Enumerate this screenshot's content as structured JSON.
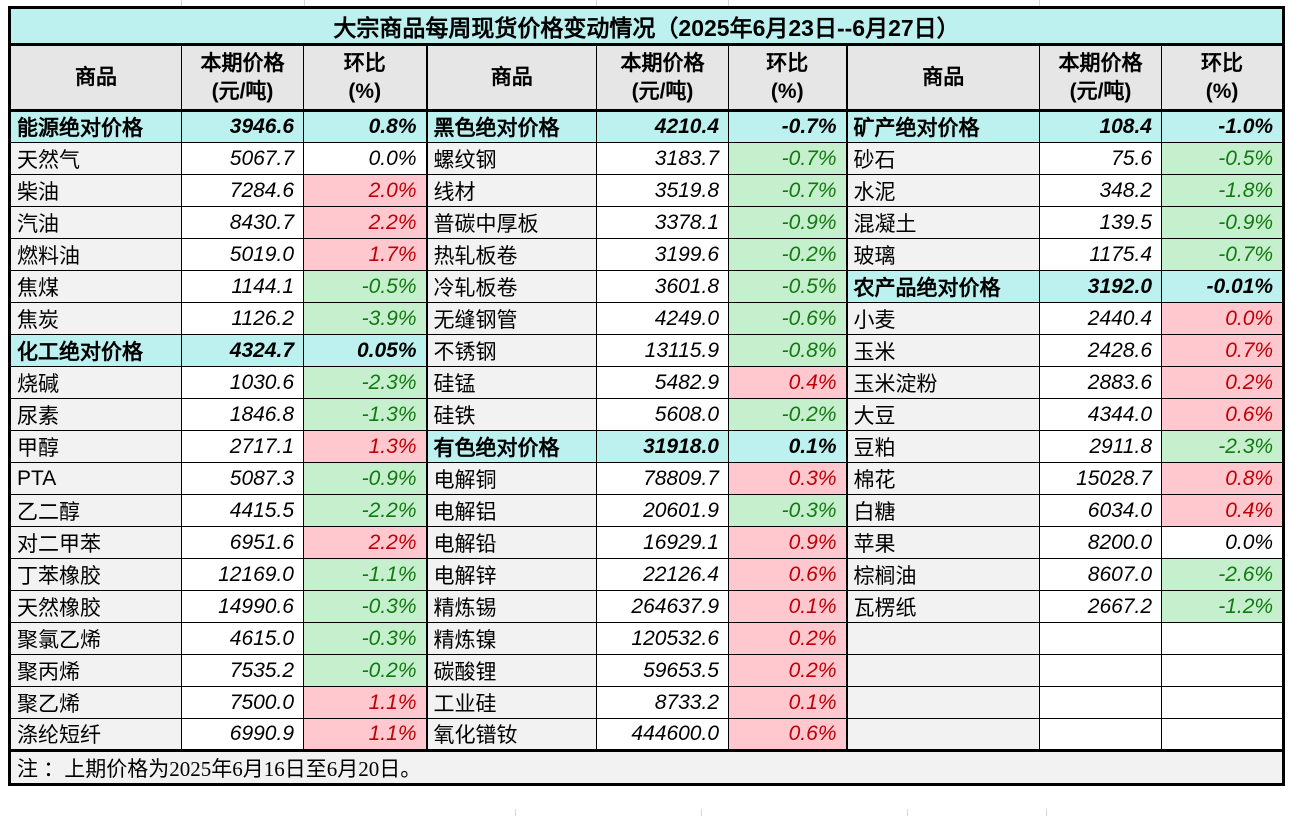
{
  "title": "大宗商品每周现货价格变动情况（2025年6月23日--6月27日）",
  "note": "注 ：上期价格为2025年6月16日至6月20日。",
  "column_headers": {
    "commodity": "商品",
    "price_line1": "本期价格",
    "price_line2": "(元/吨)",
    "change_line1": "环比",
    "change_line2": "(%)"
  },
  "colors": {
    "category_bg": "#BCF1EF",
    "header_bg": "#E7E6E6",
    "name_bg": "#F2F2F2",
    "up_bg": "#FFC7CE",
    "up_text": "#BE0006",
    "down_bg": "#C6EFCE",
    "down_text": "#107A10",
    "border": "#000000"
  },
  "groups": [
    {
      "rows": [
        {
          "name": "能源绝对价格",
          "price": "3946.6",
          "change": "0.8%",
          "type": "category"
        },
        {
          "name": "天然气",
          "price": "5067.7",
          "change": "0.0%",
          "type": "flat"
        },
        {
          "name": "柴油",
          "price": "7284.6",
          "change": "2.0%",
          "type": "up"
        },
        {
          "name": "汽油",
          "price": "8430.7",
          "change": "2.2%",
          "type": "up"
        },
        {
          "name": "燃料油",
          "price": "5019.0",
          "change": "1.7%",
          "type": "up"
        },
        {
          "name": "焦煤",
          "price": "1144.1",
          "change": "-0.5%",
          "type": "down"
        },
        {
          "name": "焦炭",
          "price": "1126.2",
          "change": "-3.9%",
          "type": "down"
        },
        {
          "name": "化工绝对价格",
          "price": "4324.7",
          "change": "0.05%",
          "type": "category"
        },
        {
          "name": "烧碱",
          "price": "1030.6",
          "change": "-2.3%",
          "type": "down"
        },
        {
          "name": "尿素",
          "price": "1846.8",
          "change": "-1.3%",
          "type": "down"
        },
        {
          "name": "甲醇",
          "price": "2717.1",
          "change": "1.3%",
          "type": "up"
        },
        {
          "name": "PTA",
          "price": "5087.3",
          "change": "-0.9%",
          "type": "down"
        },
        {
          "name": "乙二醇",
          "price": "4415.5",
          "change": "-2.2%",
          "type": "down"
        },
        {
          "name": "对二甲苯",
          "price": "6951.6",
          "change": "2.2%",
          "type": "up"
        },
        {
          "name": "丁苯橡胶",
          "price": "12169.0",
          "change": "-1.1%",
          "type": "down"
        },
        {
          "name": "天然橡胶",
          "price": "14990.6",
          "change": "-0.3%",
          "type": "down"
        },
        {
          "name": "聚氯乙烯",
          "price": "4615.0",
          "change": "-0.3%",
          "type": "down"
        },
        {
          "name": "聚丙烯",
          "price": "7535.2",
          "change": "-0.2%",
          "type": "down"
        },
        {
          "name": "聚乙烯",
          "price": "7500.0",
          "change": "1.1%",
          "type": "up"
        },
        {
          "name": "涤纶短纤",
          "price": "6990.9",
          "change": "1.1%",
          "type": "up"
        }
      ]
    },
    {
      "rows": [
        {
          "name": "黑色绝对价格",
          "price": "4210.4",
          "change": "-0.7%",
          "type": "category"
        },
        {
          "name": "螺纹钢",
          "price": "3183.7",
          "change": "-0.7%",
          "type": "down"
        },
        {
          "name": "线材",
          "price": "3519.8",
          "change": "-0.7%",
          "type": "down"
        },
        {
          "name": "普碳中厚板",
          "price": "3378.1",
          "change": "-0.9%",
          "type": "down"
        },
        {
          "name": "热轧板卷",
          "price": "3199.6",
          "change": "-0.2%",
          "type": "down"
        },
        {
          "name": "冷轧板卷",
          "price": "3601.8",
          "change": "-0.5%",
          "type": "down"
        },
        {
          "name": "无缝钢管",
          "price": "4249.0",
          "change": "-0.6%",
          "type": "down"
        },
        {
          "name": "不锈钢",
          "price": "13115.9",
          "change": "-0.8%",
          "type": "down"
        },
        {
          "name": "硅锰",
          "price": "5482.9",
          "change": "0.4%",
          "type": "up"
        },
        {
          "name": "硅铁",
          "price": "5608.0",
          "change": "-0.2%",
          "type": "down"
        },
        {
          "name": "有色绝对价格",
          "price": "31918.0",
          "change": "0.1%",
          "type": "category"
        },
        {
          "name": "电解铜",
          "price": "78809.7",
          "change": "0.3%",
          "type": "up"
        },
        {
          "name": "电解铝",
          "price": "20601.9",
          "change": "-0.3%",
          "type": "down"
        },
        {
          "name": "电解铅",
          "price": "16929.1",
          "change": "0.9%",
          "type": "up"
        },
        {
          "name": "电解锌",
          "price": "22126.4",
          "change": "0.6%",
          "type": "up"
        },
        {
          "name": "精炼锡",
          "price": "264637.9",
          "change": "0.1%",
          "type": "up"
        },
        {
          "name": "精炼镍",
          "price": "120532.6",
          "change": "0.2%",
          "type": "up"
        },
        {
          "name": "碳酸锂",
          "price": "59653.5",
          "change": "0.2%",
          "type": "up"
        },
        {
          "name": "工业硅",
          "price": "8733.2",
          "change": "0.1%",
          "type": "up"
        },
        {
          "name": "氧化镨钕",
          "price": "444600.0",
          "change": "0.6%",
          "type": "up"
        }
      ]
    },
    {
      "rows": [
        {
          "name": "矿产绝对价格",
          "price": "108.4",
          "change": "-1.0%",
          "type": "category"
        },
        {
          "name": "砂石",
          "price": "75.6",
          "change": "-0.5%",
          "type": "down"
        },
        {
          "name": "水泥",
          "price": "348.2",
          "change": "-1.8%",
          "type": "down"
        },
        {
          "name": "混凝土",
          "price": "139.5",
          "change": "-0.9%",
          "type": "down"
        },
        {
          "name": "玻璃",
          "price": "1175.4",
          "change": "-0.7%",
          "type": "down"
        },
        {
          "name": "农产品绝对价格",
          "price": "3192.0",
          "change": "-0.01%",
          "type": "category"
        },
        {
          "name": "小麦",
          "price": "2440.4",
          "change": "0.0%",
          "type": "up"
        },
        {
          "name": "玉米",
          "price": "2428.6",
          "change": "0.7%",
          "type": "up"
        },
        {
          "name": "玉米淀粉",
          "price": "2883.6",
          "change": "0.2%",
          "type": "up"
        },
        {
          "name": "大豆",
          "price": "4344.0",
          "change": "0.6%",
          "type": "up"
        },
        {
          "name": "豆粕",
          "price": "2911.8",
          "change": "-2.3%",
          "type": "down"
        },
        {
          "name": "棉花",
          "price": "15028.7",
          "change": "0.8%",
          "type": "up"
        },
        {
          "name": "白糖",
          "price": "6034.0",
          "change": "0.4%",
          "type": "up"
        },
        {
          "name": "苹果",
          "price": "8200.0",
          "change": "0.0%",
          "type": "flat"
        },
        {
          "name": "棕榈油",
          "price": "8607.0",
          "change": "-2.6%",
          "type": "down"
        },
        {
          "name": "瓦楞纸",
          "price": "2667.2",
          "change": "-1.2%",
          "type": "down"
        },
        {
          "name": "",
          "price": "",
          "change": "",
          "type": "empty"
        },
        {
          "name": "",
          "price": "",
          "change": "",
          "type": "empty"
        },
        {
          "name": "",
          "price": "",
          "change": "",
          "type": "empty"
        },
        {
          "name": "",
          "price": "",
          "change": "",
          "type": "empty"
        }
      ]
    }
  ]
}
